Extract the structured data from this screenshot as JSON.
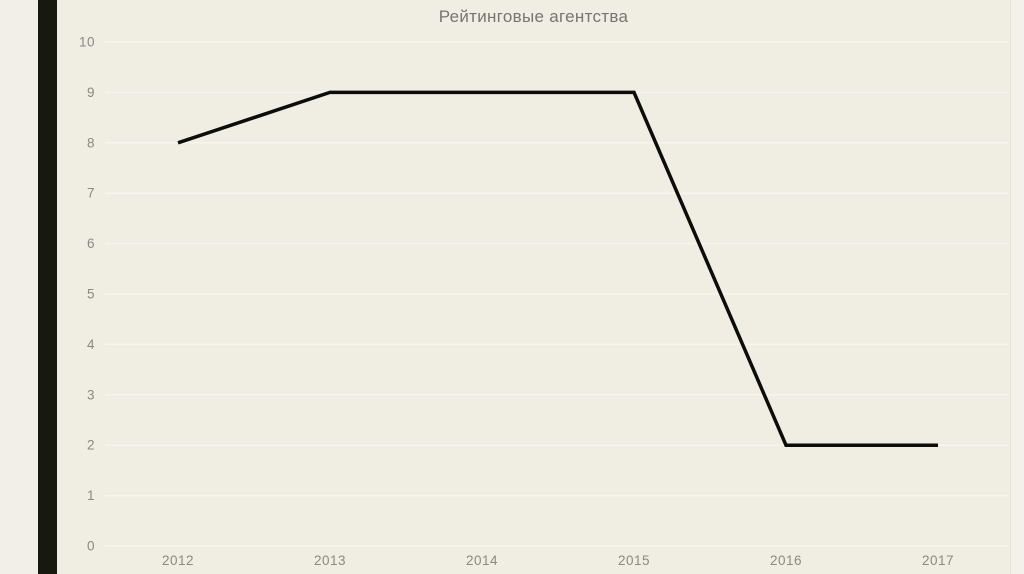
{
  "title": "Рейтинговые агентства",
  "colors": {
    "background": "#f0ede3",
    "left_margin": "#f1efe8",
    "dark_bar": "#17190f",
    "right_margin": "#f3f1ea",
    "divider": "#e6e3d8",
    "title_text": "#76756e",
    "axis_text": "#8b8980",
    "gridline": "#f7f5ee",
    "line": "#0c0c0a"
  },
  "chart_data": {
    "type": "line",
    "title": "Рейтинговые агентства",
    "categories": [
      "2012",
      "2013",
      "2014",
      "2015",
      "2016",
      "2017"
    ],
    "values": [
      8,
      9,
      9,
      9,
      2,
      2
    ],
    "y_ticks": [
      0,
      1,
      2,
      3,
      4,
      5,
      6,
      7,
      8,
      9,
      10
    ],
    "y_tick_labels": [
      "0",
      "1",
      "2",
      "3",
      "4",
      "5",
      "6",
      "7",
      "8",
      "9",
      "10"
    ],
    "xlabel": "",
    "ylabel": "",
    "ylim": [
      0,
      10
    ],
    "grid": "horizontal",
    "legend": "none",
    "line_width": 3.5,
    "markers": false
  }
}
